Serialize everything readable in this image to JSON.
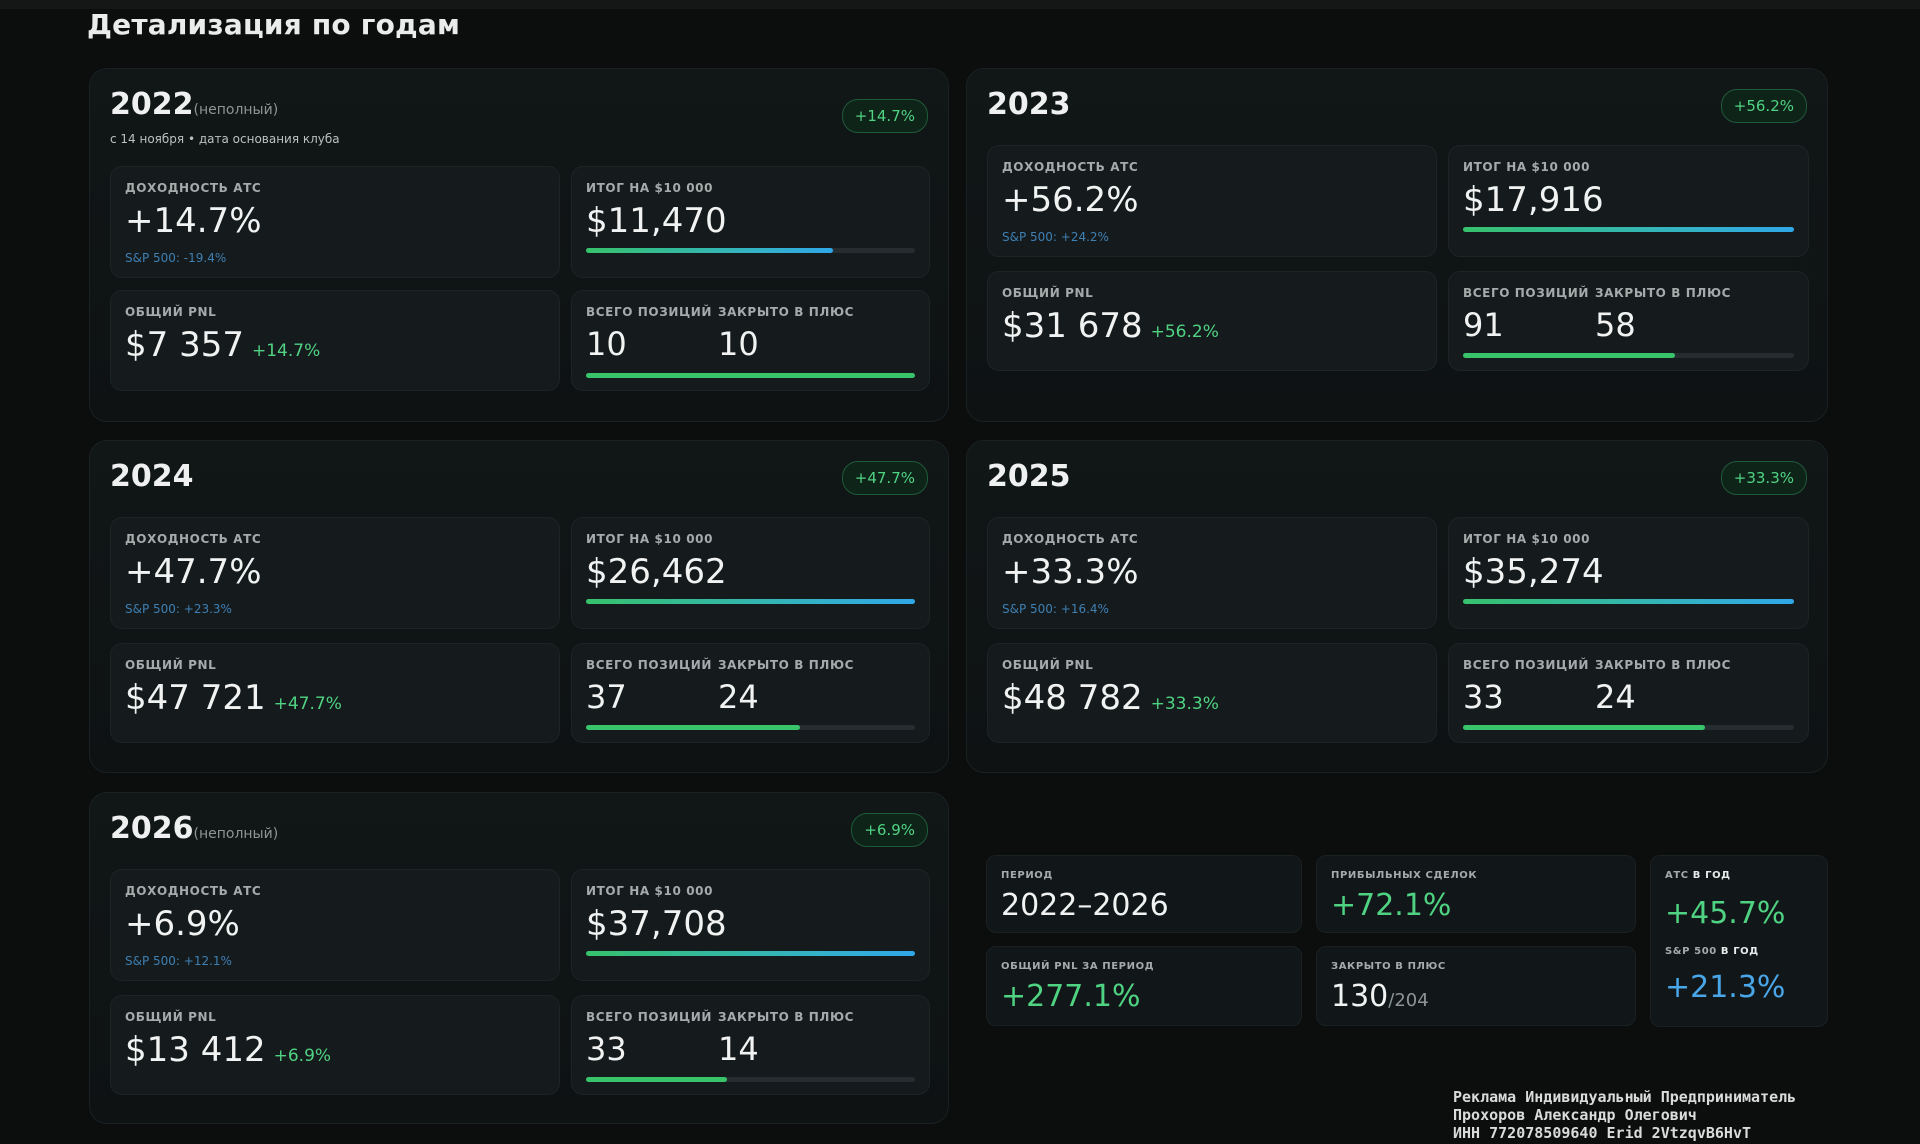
{
  "section_title": "Детализация по годам",
  "labels": {
    "yield": "ДОХОДНОСТЬ АТС",
    "total": "ИТОГ НА $10 000",
    "pnl": "ОБЩИЙ PNL",
    "positions": "ВСЕГО ПОЗИЦИЙ",
    "closed_plus": "ЗАКРЫТО В ПЛЮС"
  },
  "years": [
    {
      "year": "2022",
      "note": "(неполный)",
      "since": "с 14 ноября • дата основания клуба",
      "badge": "+14.7%",
      "yield": "+14.7%",
      "sp500": "S&P 500: -19.4%",
      "total": "$11,470",
      "total_progress": 0.75,
      "pnl": "$7 357",
      "pnl_pct": "+14.7%",
      "positions": "10",
      "closed_plus": "10",
      "closed_progress": 1.0
    },
    {
      "year": "2023",
      "note": "",
      "since": "",
      "badge": "+56.2%",
      "yield": "+56.2%",
      "sp500": "S&P 500: +24.2%",
      "total": "$17,916",
      "total_progress": 1.0,
      "pnl": "$31 678",
      "pnl_pct": "+56.2%",
      "positions": "91",
      "closed_plus": "58",
      "closed_progress": 0.64
    },
    {
      "year": "2024",
      "note": "",
      "since": "",
      "badge": "+47.7%",
      "yield": "+47.7%",
      "sp500": "S&P 500: +23.3%",
      "total": "$26,462",
      "total_progress": 1.0,
      "pnl": "$47 721",
      "pnl_pct": "+47.7%",
      "positions": "37",
      "closed_plus": "24",
      "closed_progress": 0.65
    },
    {
      "year": "2025",
      "note": "",
      "since": "",
      "badge": "+33.3%",
      "yield": "+33.3%",
      "sp500": "S&P 500: +16.4%",
      "total": "$35,274",
      "total_progress": 1.0,
      "pnl": "$48 782",
      "pnl_pct": "+33.3%",
      "positions": "33",
      "closed_plus": "24",
      "closed_progress": 0.73
    },
    {
      "year": "2026",
      "note": "(неполный)",
      "since": "",
      "badge": "+6.9%",
      "yield": "+6.9%",
      "sp500": "S&P 500: +12.1%",
      "total": "$37,708",
      "total_progress": 1.0,
      "pnl": "$13 412",
      "pnl_pct": "+6.9%",
      "positions": "33",
      "closed_plus": "14",
      "closed_progress": 0.43
    }
  ],
  "summary": {
    "period_label": "ПЕРИОД",
    "period": "2022–2026",
    "profitable_label": "ПРИБЫЛЬНЫХ СДЕЛОК",
    "profitable": "+72.1%",
    "ats_year_label_1": "АТС",
    "ats_year_label_2": "В ГОД",
    "ats_year": "+45.7%",
    "pnl_period_label": "ОБЩИЙ PNL ЗА ПЕРИОД",
    "pnl_period": "+277.1%",
    "closed_label": "ЗАКРЫТО В ПЛЮС",
    "closed": "130",
    "closed_total": "/204",
    "sp_year_label_1": "S&P 500",
    "sp_year_label_2": "В ГОД",
    "sp_year": "+21.3%"
  },
  "ad": {
    "line1": "Реклама Индивидуальный Предприниматель",
    "line2": "Прохоров Александр Олегович",
    "line3": "ИНН 772078509640 Erid 2VtzqvB6HvT"
  },
  "colors": {
    "background": "#0c0d0d",
    "positive": "#4fd382",
    "sp500": "#3f7fb2",
    "bar_total": "#2fa8e8"
  }
}
